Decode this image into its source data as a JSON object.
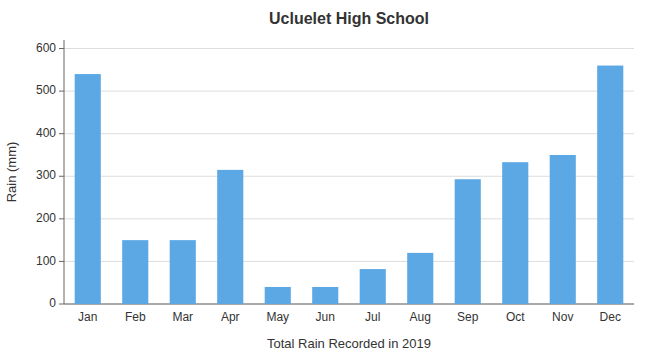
{
  "chart_data": {
    "type": "bar",
    "title": "Ucluelet High School",
    "x_label": "Total Rain Recorded in 2019",
    "y_label": "Rain (mm)",
    "categories": [
      "Jan",
      "Feb",
      "Mar",
      "Apr",
      "May",
      "Jun",
      "Jul",
      "Aug",
      "Sep",
      "Oct",
      "Nov",
      "Dec"
    ],
    "values": [
      540,
      150,
      150,
      315,
      40,
      40,
      82,
      120,
      293,
      333,
      350,
      560
    ],
    "color": "#5BA8E5",
    "ylim": [
      0,
      620
    ],
    "yticks": [
      0,
      100,
      200,
      300,
      400,
      500,
      600
    ],
    "grid": true
  }
}
